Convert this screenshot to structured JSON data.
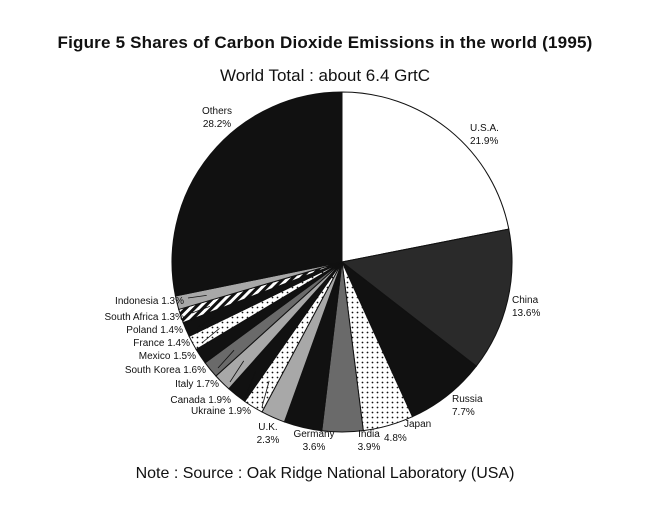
{
  "chart_data": {
    "type": "pie",
    "title": "Figure 5 Shares of Carbon Dioxide Emissions in the world (1995)",
    "subtitle": "World Total : about 6.4 GrtC",
    "note": "Note : Source : Oak Ridge National Laboratory (USA)",
    "start_angle_deg": 0,
    "direction": "clockwise",
    "slices": [
      {
        "label": "U.S.A.",
        "value": 21.9,
        "value_text": "21.9%",
        "pattern": "white"
      },
      {
        "label": "China",
        "value": 13.6,
        "value_text": "13.6%",
        "pattern": "darkgray"
      },
      {
        "label": "Russia",
        "value": 7.7,
        "value_text": "7.7%",
        "pattern": "black"
      },
      {
        "label": "Japan",
        "value": 4.8,
        "value_text": "4.8%",
        "pattern": "dots"
      },
      {
        "label": "India",
        "value": 3.9,
        "value_text": "3.9%",
        "pattern": "gray"
      },
      {
        "label": "Germany",
        "value": 3.6,
        "value_text": "3.6%",
        "pattern": "black"
      },
      {
        "label": "U.K.",
        "value": 2.3,
        "value_text": "2.3%",
        "pattern": "lightgray"
      },
      {
        "label": "Ukraine",
        "value": 1.9,
        "value_text": "1.9%",
        "pattern": "dots"
      },
      {
        "label": "Canada",
        "value": 1.9,
        "value_text": "1.9%",
        "pattern": "black"
      },
      {
        "label": "Italy",
        "value": 1.7,
        "value_text": "1.7%",
        "pattern": "lightgray"
      },
      {
        "label": "South Korea",
        "value": 1.6,
        "value_text": "1.6%",
        "pattern": "gray"
      },
      {
        "label": "Mexico",
        "value": 1.5,
        "value_text": "1.5%",
        "pattern": "black"
      },
      {
        "label": "France",
        "value": 1.4,
        "value_text": "1.4%",
        "pattern": "dots"
      },
      {
        "label": "Poland",
        "value": 1.4,
        "value_text": "1.4%",
        "pattern": "black"
      },
      {
        "label": "South Africa",
        "value": 1.3,
        "value_text": "1.3%",
        "pattern": "stripes"
      },
      {
        "label": "Indonesia",
        "value": 1.3,
        "value_text": "1.3%",
        "pattern": "lightgray"
      },
      {
        "label": "Others",
        "value": 28.2,
        "value_text": "28.2%",
        "pattern": "black"
      }
    ]
  }
}
